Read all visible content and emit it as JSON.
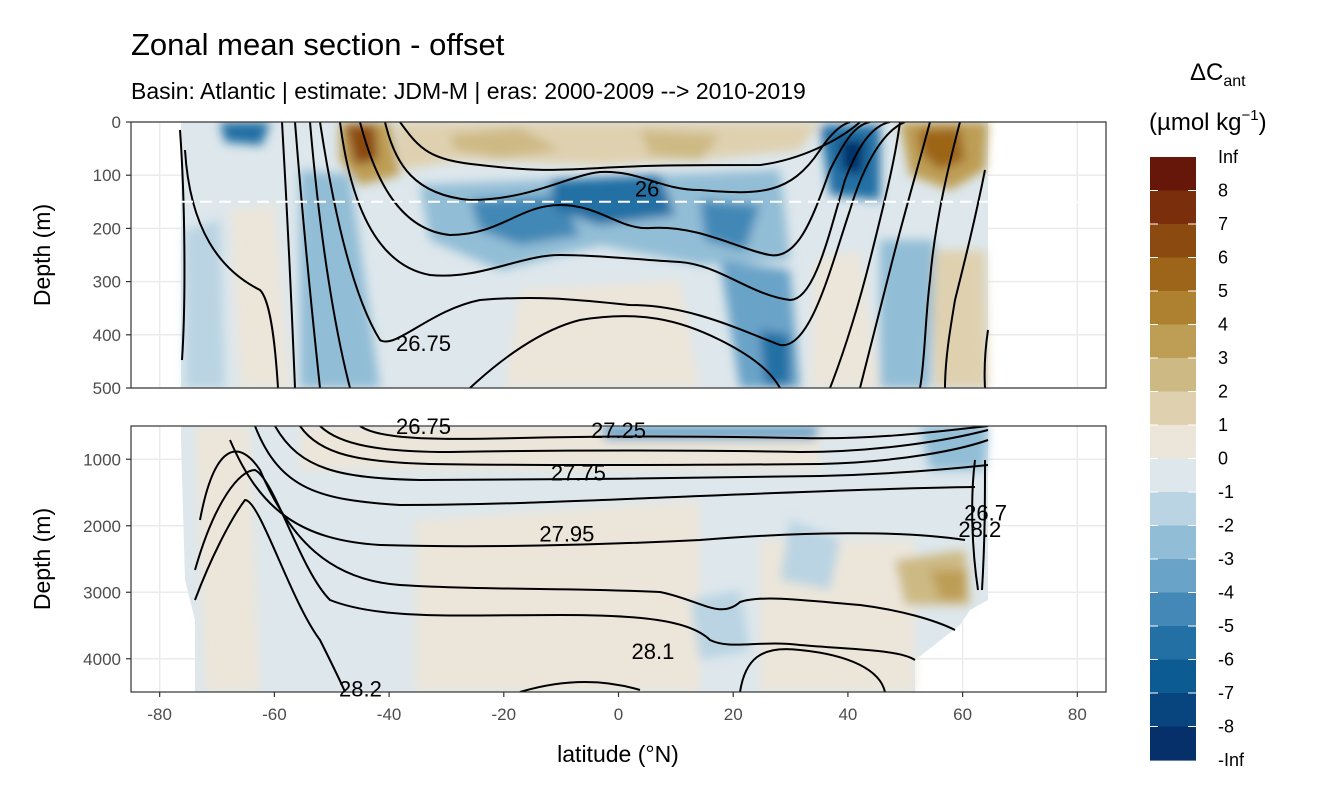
{
  "chart_data": {
    "type": "contour",
    "title": "Zonal mean section - offset",
    "subtitle": "Basin: Atlantic | estimate: JDM-M | eras: 2000-2009 --> 2010-2019",
    "xlabel": "latitude (°N)",
    "xlim": [
      -85,
      85
    ],
    "x_ticks": [
      -80,
      -60,
      -40,
      -20,
      0,
      20,
      40,
      60,
      80
    ],
    "x_tick_labels": [
      "-80",
      "-60",
      "-40",
      "-20",
      "0",
      "20",
      "40",
      "60",
      "80"
    ],
    "panels": [
      {
        "ylabel": "Depth (m)",
        "ylim": [
          0,
          500
        ],
        "y_ticks": [
          0,
          100,
          200,
          300,
          400,
          500
        ],
        "y_tick_labels": [
          "0",
          "100",
          "200",
          "300",
          "400",
          "500"
        ],
        "reference_line_depth": 150,
        "isopycnal_labels": [
          {
            "text": "26",
            "lat": 5,
            "depth": 125
          },
          {
            "text": "26.75",
            "lat": -34,
            "depth": 415
          }
        ]
      },
      {
        "ylabel": "Depth (m)",
        "ylim": [
          500,
          4500
        ],
        "y_ticks": [
          1000,
          2000,
          3000,
          4000
        ],
        "y_tick_labels": [
          "1000",
          "2000",
          "3000",
          "4000"
        ],
        "isopycnal_labels": [
          {
            "text": "26.75",
            "lat": -34,
            "depth": 500
          },
          {
            "text": "27.25",
            "lat": 0,
            "depth": 560
          },
          {
            "text": "27.75",
            "lat": -7,
            "depth": 1200
          },
          {
            "text": "27.95",
            "lat": -9,
            "depth": 2120
          },
          {
            "text": "28.1",
            "lat": 6,
            "depth": 3880
          },
          {
            "text": "28.2",
            "lat": -45,
            "depth": 4450
          },
          {
            "text": "28.2",
            "lat": 63,
            "depth": 2050
          },
          {
            "text": "26.7",
            "lat": 64,
            "depth": 1800
          }
        ]
      }
    ],
    "legend": {
      "title_main": "ΔC",
      "title_sub": "ant",
      "title_unit": "(µmol kg",
      "title_unit_sup": "−1",
      "title_unit_end": ")",
      "levels": [
        "Inf",
        "8",
        "7",
        "6",
        "5",
        "4",
        "3",
        "2",
        "1",
        "0",
        "-1",
        "-2",
        "-3",
        "-4",
        "-5",
        "-6",
        "-7",
        "-8",
        "-Inf"
      ],
      "colors": [
        "#67160a",
        "#7b2e0c",
        "#8b4a10",
        "#9c6519",
        "#ad8130",
        "#be9e55",
        "#cdb984",
        "#dfd1b0",
        "#ece6da",
        "#dde7ec",
        "#bad4e3",
        "#92bdd6",
        "#6aa3c8",
        "#4388b6",
        "#2370a4",
        "#0d5b93",
        "#08457f",
        "#06306a",
        "#041f55"
      ]
    }
  }
}
